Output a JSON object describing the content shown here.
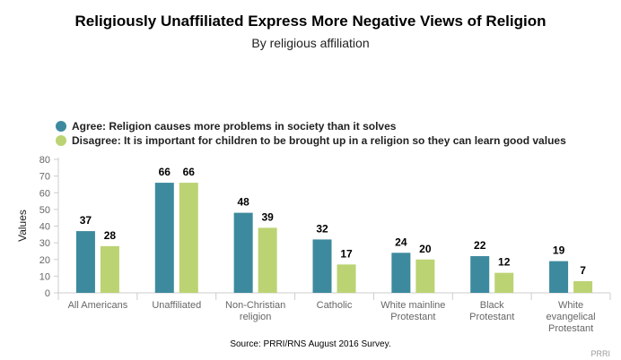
{
  "title": "Religiously Unaffiliated Express More Negative Views of Religion",
  "subtitle": "By religious affiliation",
  "source": "Source: PRRI/RNS August 2016 Survey.",
  "credit": "PRRI",
  "chart_data": {
    "type": "bar",
    "title": "Religiously Unaffiliated Express More Negative Views of Religion",
    "subtitle": "By religious affiliation",
    "ylabel": "Values",
    "xlabel": "",
    "ylim": [
      0,
      80
    ],
    "yticks": [
      0,
      10,
      20,
      30,
      40,
      50,
      60,
      70,
      80
    ],
    "grid": false,
    "legend": "top-left",
    "categories": [
      [
        "All Americans"
      ],
      [
        "Unaffiliated"
      ],
      [
        "Non-Christian",
        "religion"
      ],
      [
        "Catholic"
      ],
      [
        "White mainline",
        "Protestant"
      ],
      [
        "Black",
        "Protestant"
      ],
      [
        "White",
        "evangelical",
        "Protestant"
      ]
    ],
    "series": [
      {
        "name": "Agree: Religion causes more problems in society than it solves",
        "color": "#3d8a9e",
        "values": [
          37,
          66,
          48,
          32,
          24,
          22,
          19
        ]
      },
      {
        "name": "Disagree: It is important for children to be brought up in a religion so they can learn good values",
        "color": "#bcd373",
        "values": [
          28,
          66,
          39,
          17,
          20,
          12,
          7
        ]
      }
    ]
  }
}
